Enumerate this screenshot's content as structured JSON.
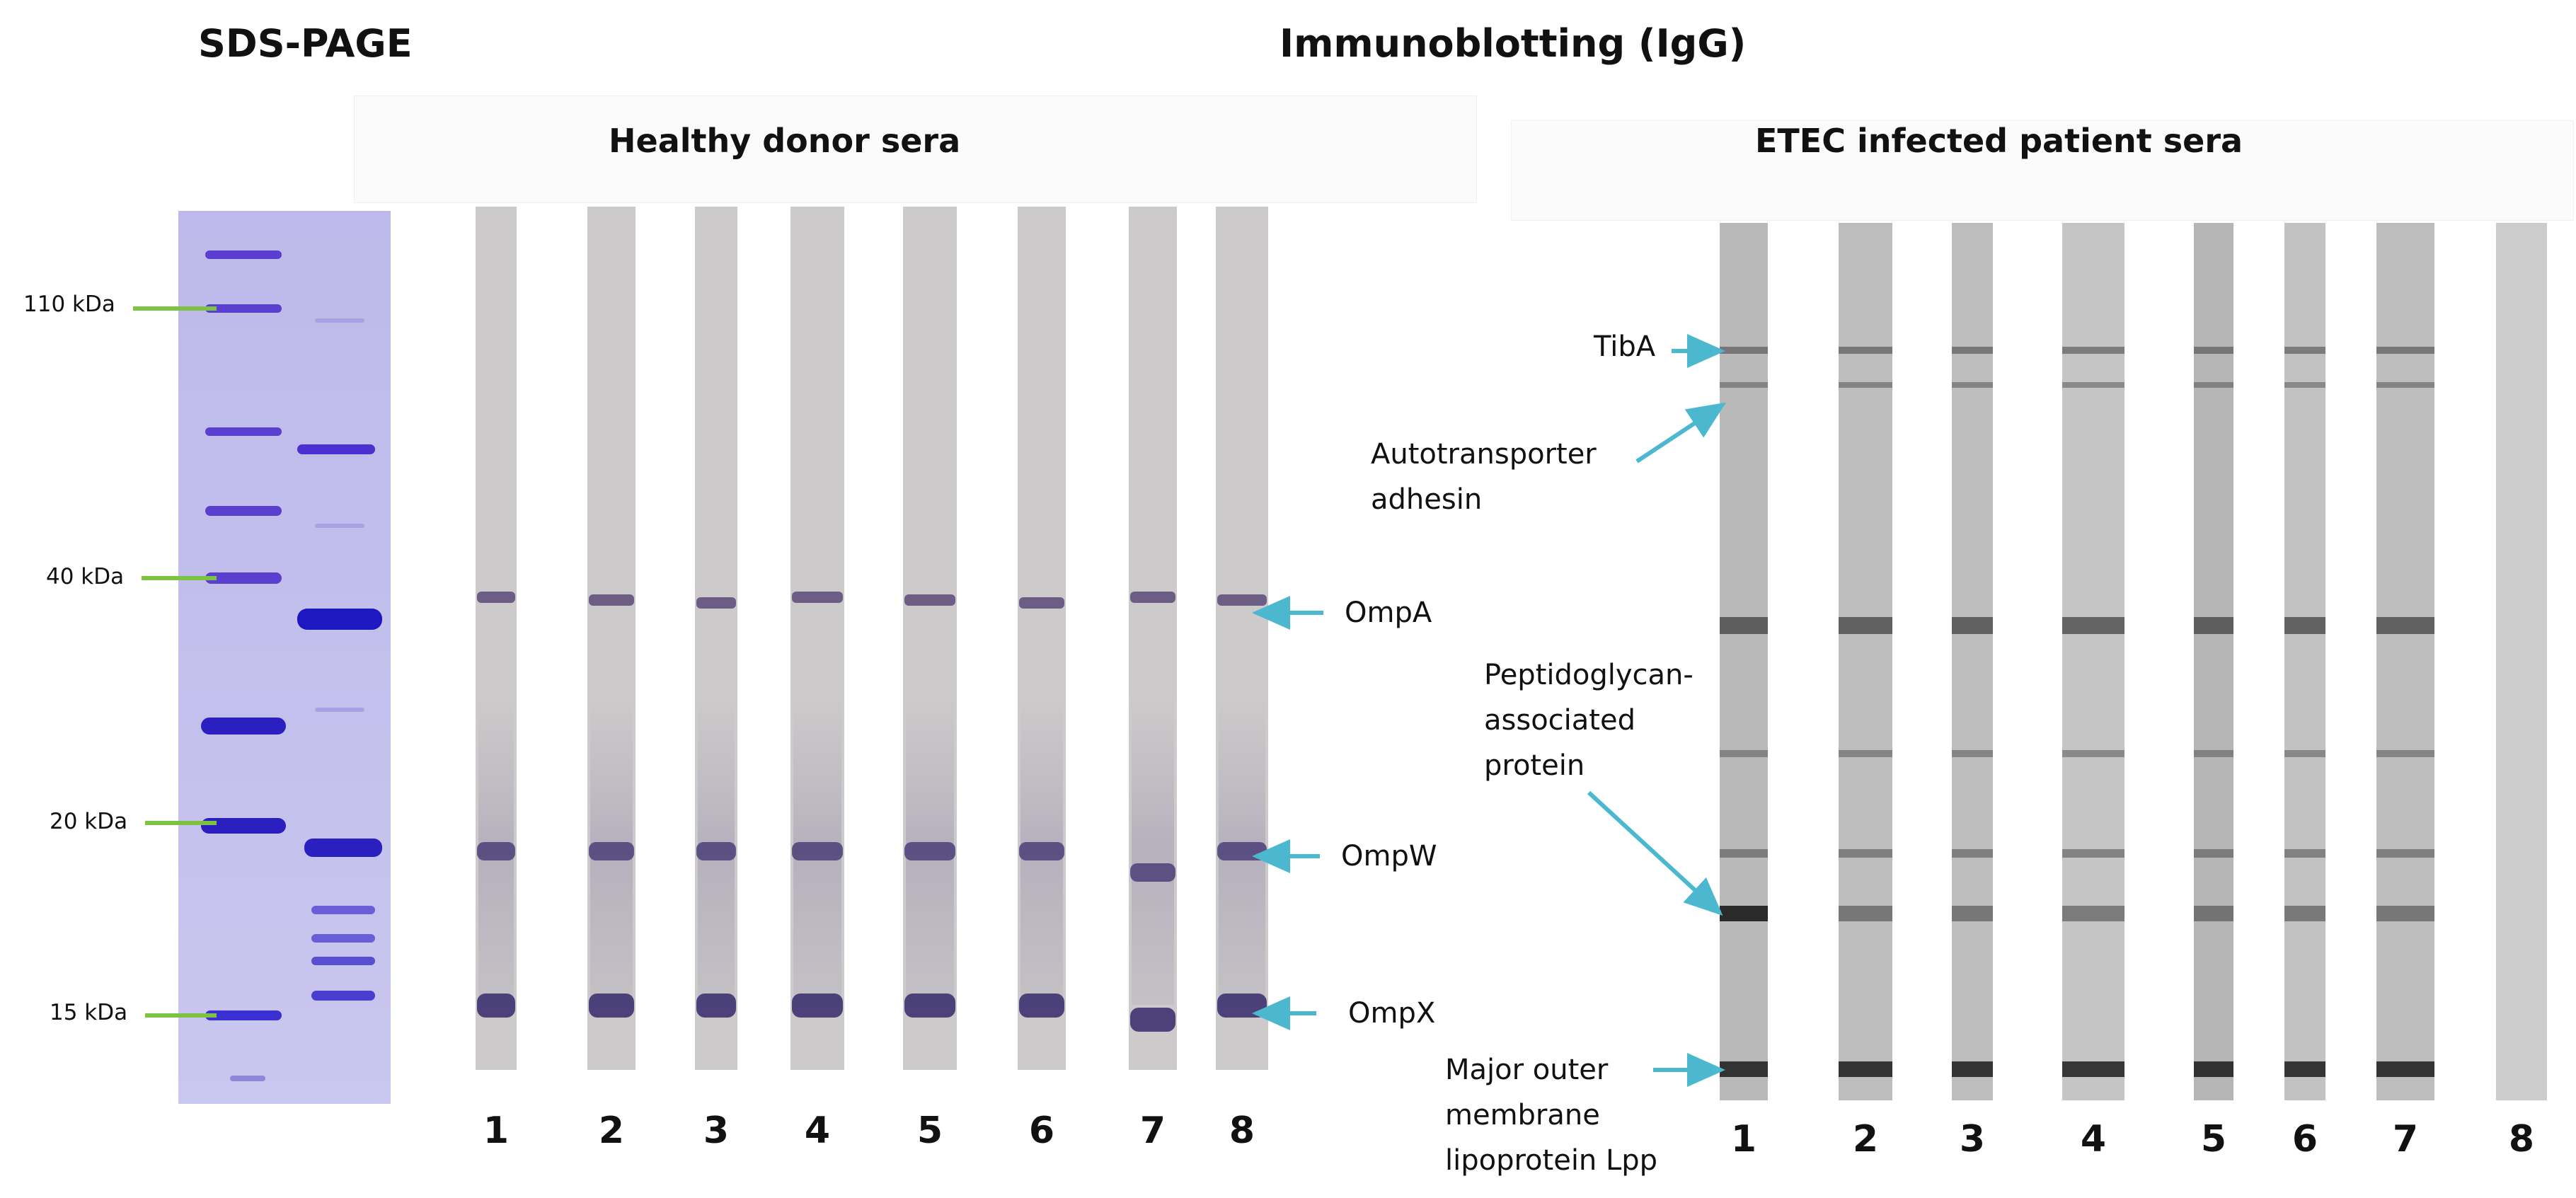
{
  "titles": {
    "sds": "SDS-PAGE",
    "immuno": "Immunoblotting (IgG)",
    "healthy": "Healthy donor sera",
    "etec": "ETEC infected patient sera"
  },
  "markers": [
    "110 kDa",
    "40 kDa",
    "20 kDa",
    "15 kDa"
  ],
  "healthy_lanes": [
    "1",
    "2",
    "3",
    "4",
    "5",
    "6",
    "7",
    "8"
  ],
  "etec_lanes": [
    "1",
    "2",
    "3",
    "4",
    "5",
    "6",
    "7",
    "8"
  ],
  "healthy_callouts": {
    "ompa": "OmpA",
    "ompw": "OmpW",
    "ompx": "OmpX"
  },
  "etec_callouts": {
    "tiba": "TibA",
    "auto_l1": "Autotransporter",
    "auto_l2": "adhesin",
    "pap_l1": "Peptidoglycan-",
    "pap_l2": "associated",
    "pap_l3": "protein",
    "lpp_l1": "Major outer",
    "lpp_l2": "membrane",
    "lpp_l3": "lipoprotein Lpp"
  },
  "colors": {
    "callout_arrow": "#4bb8d0",
    "marker_line": "#7dc242",
    "gel_bg": "#c2bfe8",
    "gel_band": "#2a1fbf",
    "strip_bg": "#cfcdcd",
    "band_purple": "#4b3f78"
  }
}
